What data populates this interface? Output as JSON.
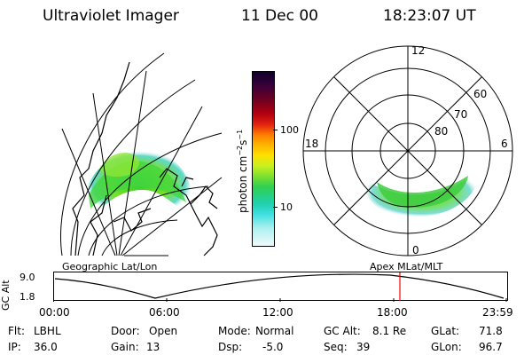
{
  "header": {
    "instrument": "Ultraviolet Imager",
    "date": "11 Dec 00",
    "time": "18:23:07 UT"
  },
  "colorbar": {
    "unit_label": "photon cm",
    "unit_exp1": "−2",
    "unit_s": "s",
    "unit_exp2": "−1",
    "ticks": [
      "100",
      "10"
    ]
  },
  "polar_plot": {
    "hour_labels": {
      "top": "12",
      "left": "18",
      "right": "6",
      "bottom": "0"
    },
    "lat_labels": [
      "60",
      "70",
      "80"
    ]
  },
  "panels": {
    "left_label": "Geographic Lat/Lon",
    "right_label": "Apex MLat/MLT"
  },
  "timeline": {
    "axis_label": "GC Alt",
    "y_max": "9.0",
    "y_min": "1.8",
    "ticks": [
      "00:00",
      "06:00",
      "12:00",
      "18:00",
      "23:59"
    ],
    "marker_time": "18:23",
    "marker_color": "#ff0000"
  },
  "info": {
    "row1": [
      {
        "key": "Flt:",
        "value": "LBHL"
      },
      {
        "key": "Door:",
        "value": "Open"
      },
      {
        "key": "Mode:",
        "value": "Normal"
      },
      {
        "key": "GC Alt:",
        "value": "8.1 Re"
      },
      {
        "key": "GLat:",
        "value": "71.8"
      }
    ],
    "row2": [
      {
        "key": "IP:",
        "value": "36.0"
      },
      {
        "key": "Gain:",
        "value": "13"
      },
      {
        "key": "Dsp:",
        "value": "-5.0"
      },
      {
        "key": "Seq:",
        "value": "39"
      },
      {
        "key": "GLon:",
        "value": "96.7"
      }
    ]
  }
}
